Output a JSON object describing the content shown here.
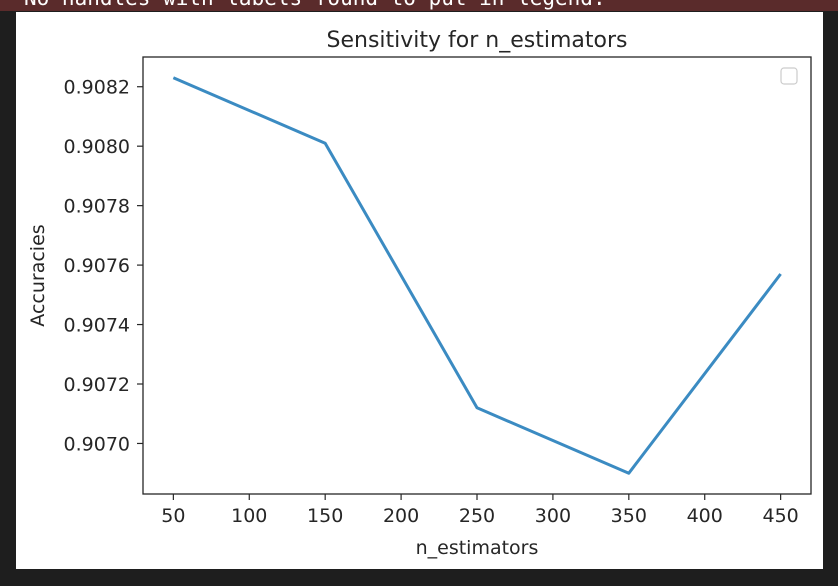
{
  "console": {
    "warning": "No handles with labels found to put in legend."
  },
  "colors": {
    "line": "#3b8bc2",
    "warning_bg": "#5a2b2b",
    "background": "#1e1e1e"
  },
  "chart_data": {
    "type": "line",
    "title": "Sensitivity for n_estimators",
    "xlabel": "n_estimators",
    "ylabel": "Accuracies",
    "x": [
      50,
      150,
      250,
      350,
      450
    ],
    "series": [
      {
        "values": [
          0.90823,
          0.90801,
          0.90712,
          0.9069,
          0.90757
        ]
      }
    ],
    "xticks": [
      "50",
      "100",
      "150",
      "200",
      "250",
      "300",
      "350",
      "400",
      "450"
    ],
    "yticks": [
      "0.9070",
      "0.9072",
      "0.9074",
      "0.9076",
      "0.9078",
      "0.9080",
      "0.9082"
    ],
    "xlim": [
      30,
      470
    ],
    "ylim": [
      0.90683,
      0.9083
    ],
    "grid": false,
    "legend": "top-right, empty"
  }
}
